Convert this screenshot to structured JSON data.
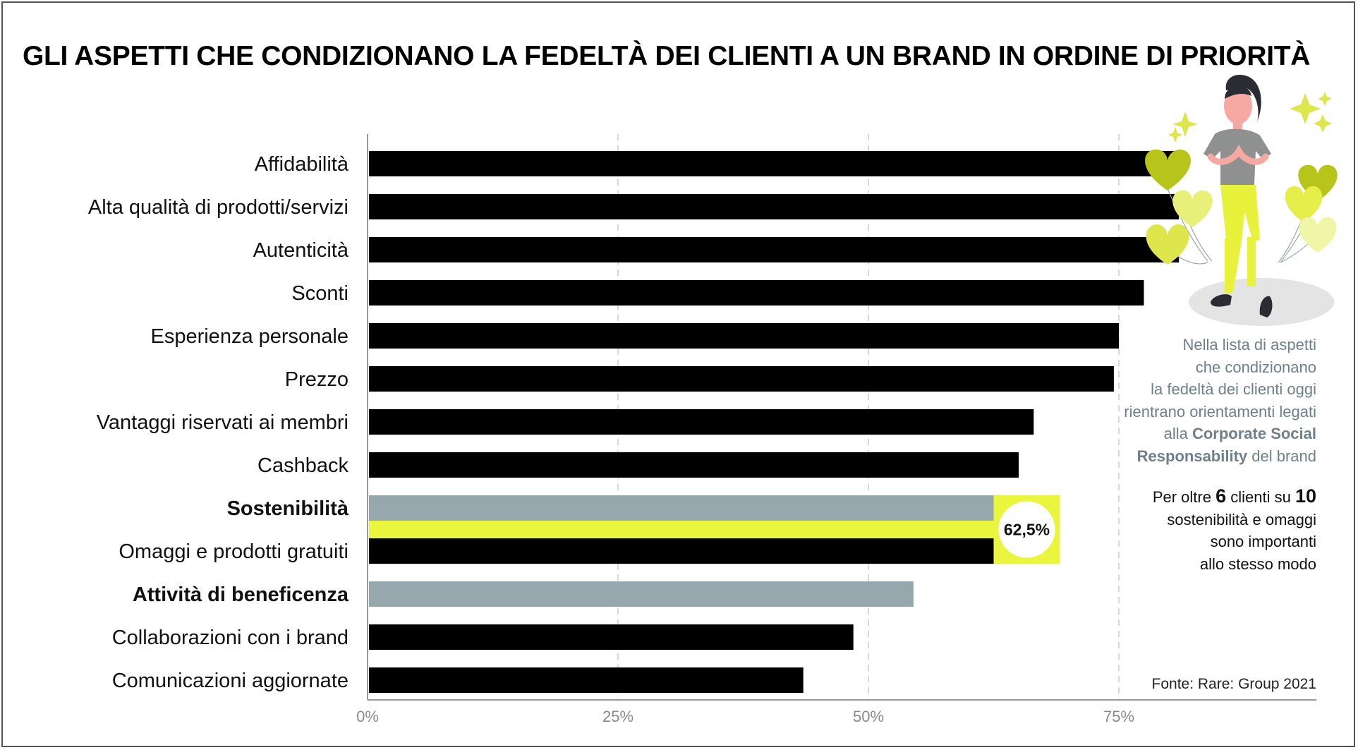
{
  "title": "GLI ASPETTI CHE CONDIZIONANO LA FEDELTÀ DEI CLIENTI A UN BRAND IN ORDINE DI PRIORITÀ",
  "chart_data": {
    "type": "bar",
    "orientation": "horizontal",
    "categories": [
      "Affidabilità",
      "Alta qualità di prodotti/servizi",
      "Autenticità",
      "Sconti",
      "Esperienza personale",
      "Prezzo",
      "Vantaggi riservati ai membri",
      "Cashback",
      "Sostenibilità",
      "Omaggi e prodotti gratuiti",
      "Attività di beneficenza",
      "Collaborazioni con i brand",
      "Comunicazioni aggiornate"
    ],
    "values": [
      81,
      81,
      81,
      77.5,
      75,
      74.5,
      66.5,
      65,
      62.5,
      62.5,
      54.5,
      48.5,
      43.5
    ],
    "highlighted": [
      "Sostenibilità",
      "Attività di beneficenza"
    ],
    "xlim": [
      0,
      95
    ],
    "xticks": [
      0,
      25,
      50,
      75
    ],
    "xtick_labels": [
      "0%",
      "25%",
      "50%",
      "75%"
    ],
    "grid": true,
    "annotation": {
      "label": "62,5%",
      "categories": [
        "Sostenibilità",
        "Omaggi e prodotti gratuiti"
      ],
      "value": 62.5
    },
    "colors": {
      "default": "#000000",
      "highlight": "#96a8ae",
      "accent": "#eaf53d",
      "grid": "#d8d8d8"
    }
  },
  "notes": {
    "csr_lines": [
      "Nella lista di aspetti",
      "che condizionano",
      "la fedeltà dei clienti oggi",
      "rientrano orientamenti legati"
    ],
    "csr_prefix": "alla ",
    "csr_bold1": "Corporate Social",
    "csr_bold2": "Responsability",
    "csr_suffix": " del brand",
    "six_a": "Per oltre ",
    "six_b": "6",
    "six_c": " clienti su ",
    "six_d": "10",
    "six_lines": [
      "sostenibilità e omaggi",
      "sono importanti",
      "allo stesso modo"
    ]
  },
  "source": "Fonte: Rare: Group 2021",
  "illustration": "woman-heart-balloons-illustration"
}
